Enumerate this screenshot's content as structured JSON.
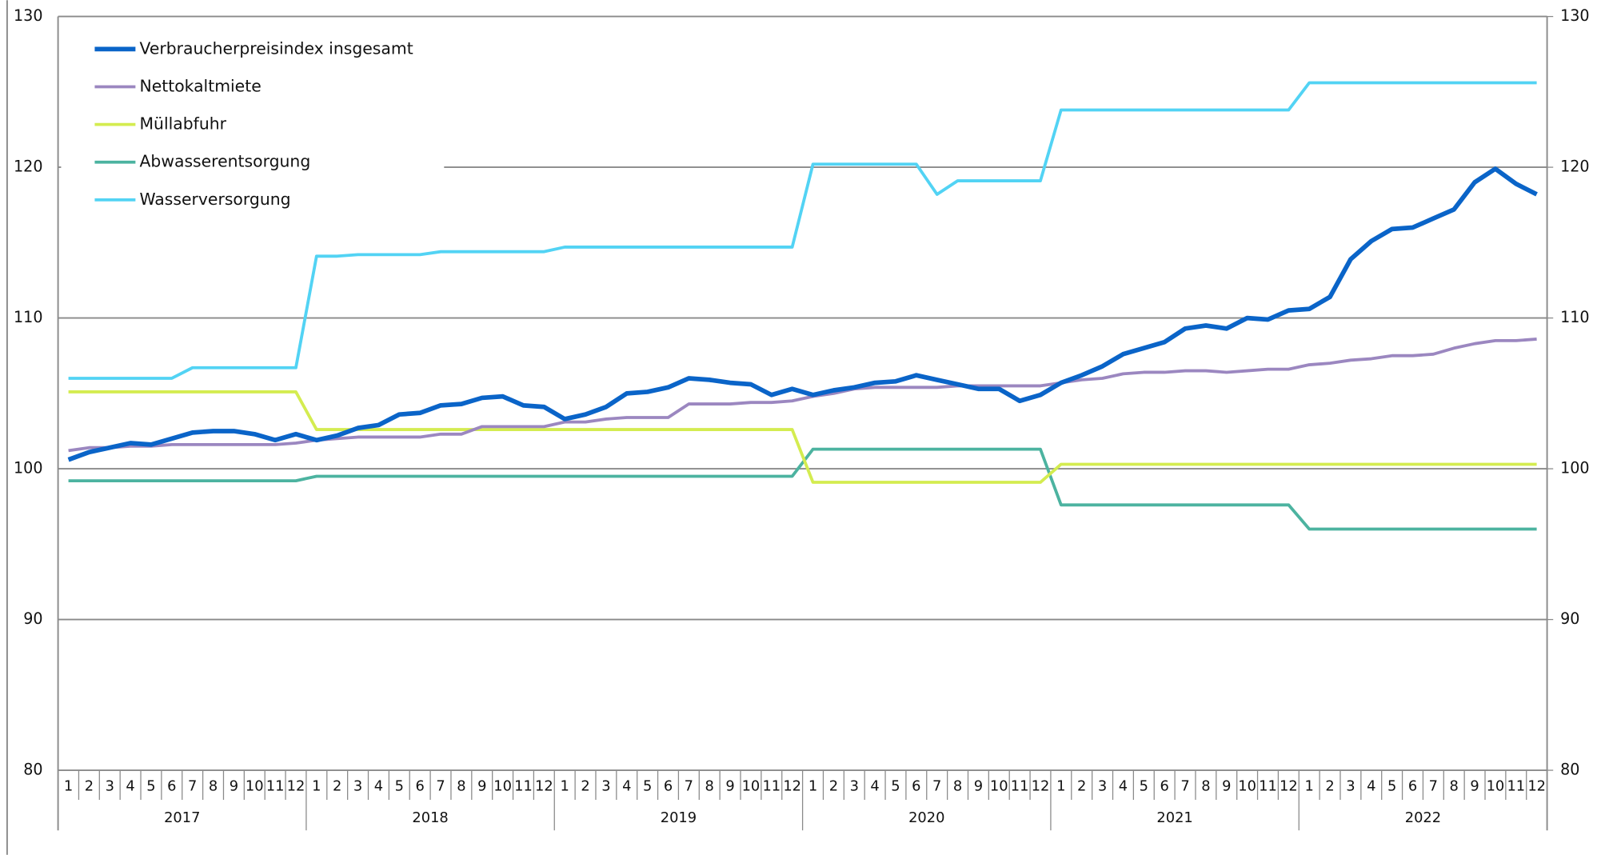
{
  "chart_data": {
    "type": "line",
    "categories": [
      "1",
      "2",
      "3",
      "4",
      "5",
      "6",
      "7",
      "8",
      "9",
      "10",
      "11",
      "12",
      "1",
      "2",
      "3",
      "4",
      "5",
      "6",
      "7",
      "8",
      "9",
      "10",
      "11",
      "12",
      "1",
      "2",
      "3",
      "4",
      "5",
      "6",
      "7",
      "8",
      "9",
      "10",
      "11",
      "12",
      "1",
      "2",
      "3",
      "4",
      "5",
      "6",
      "7",
      "8",
      "9",
      "10",
      "11",
      "12",
      "1",
      "2",
      "3",
      "4",
      "5",
      "6",
      "7",
      "8",
      "9",
      "10",
      "11",
      "12",
      "1",
      "2",
      "3",
      "4",
      "5",
      "6",
      "7",
      "8",
      "9",
      "10",
      "11",
      "12"
    ],
    "years": [
      "2017",
      "2018",
      "2019",
      "2020",
      "2021",
      "2022"
    ],
    "ylim": [
      80,
      130
    ],
    "yticks": [
      80,
      90,
      100,
      110,
      120,
      130
    ],
    "y2lim": [
      80,
      130
    ],
    "y2ticks": [
      80,
      90,
      100,
      110,
      120,
      130
    ],
    "grid": true,
    "legend": "upper left",
    "series": [
      {
        "name": "Verbraucherpreisindex insgesamt",
        "color": "#0a64c8",
        "values": [
          100.6,
          101.1,
          101.4,
          101.7,
          101.6,
          102.0,
          102.4,
          102.5,
          102.5,
          102.3,
          101.9,
          102.3,
          101.9,
          102.2,
          102.7,
          102.9,
          103.6,
          103.7,
          104.2,
          104.3,
          104.7,
          104.8,
          104.2,
          104.1,
          103.3,
          103.6,
          104.1,
          105.0,
          105.1,
          105.4,
          106.0,
          105.9,
          105.7,
          105.6,
          104.9,
          105.3,
          104.9,
          105.2,
          105.4,
          105.7,
          105.8,
          106.2,
          105.9,
          105.6,
          105.3,
          105.3,
          104.5,
          104.9,
          105.7,
          106.2,
          106.8,
          107.6,
          108.0,
          108.4,
          109.3,
          109.5,
          109.3,
          110.0,
          109.9,
          110.5,
          110.6,
          111.4,
          113.9,
          115.1,
          115.9,
          116.0,
          116.6,
          117.2,
          119.0,
          119.9,
          118.9,
          118.2
        ]
      },
      {
        "name": "Nettokaltmiete",
        "color": "#9b87c0",
        "values": [
          101.2,
          101.4,
          101.4,
          101.5,
          101.5,
          101.6,
          101.6,
          101.6,
          101.6,
          101.6,
          101.6,
          101.7,
          101.9,
          102.0,
          102.1,
          102.1,
          102.1,
          102.1,
          102.3,
          102.3,
          102.8,
          102.8,
          102.8,
          102.8,
          103.1,
          103.1,
          103.3,
          103.4,
          103.4,
          103.4,
          104.3,
          104.3,
          104.3,
          104.4,
          104.4,
          104.5,
          104.8,
          105.0,
          105.3,
          105.4,
          105.4,
          105.4,
          105.4,
          105.5,
          105.5,
          105.5,
          105.5,
          105.5,
          105.7,
          105.9,
          106.0,
          106.3,
          106.4,
          106.4,
          106.5,
          106.5,
          106.4,
          106.5,
          106.6,
          106.6,
          106.9,
          107.0,
          107.2,
          107.3,
          107.5,
          107.5,
          107.6,
          108.0,
          108.3,
          108.5,
          108.5,
          108.6
        ]
      },
      {
        "name": "Müllabfuhr",
        "color": "#d4ec50",
        "values": [
          105.1,
          105.1,
          105.1,
          105.1,
          105.1,
          105.1,
          105.1,
          105.1,
          105.1,
          105.1,
          105.1,
          105.1,
          102.6,
          102.6,
          102.6,
          102.6,
          102.6,
          102.6,
          102.6,
          102.6,
          102.6,
          102.6,
          102.6,
          102.6,
          102.6,
          102.6,
          102.6,
          102.6,
          102.6,
          102.6,
          102.6,
          102.6,
          102.6,
          102.6,
          102.6,
          102.6,
          99.1,
          99.1,
          99.1,
          99.1,
          99.1,
          99.1,
          99.1,
          99.1,
          99.1,
          99.1,
          99.1,
          99.1,
          100.3,
          100.3,
          100.3,
          100.3,
          100.3,
          100.3,
          100.3,
          100.3,
          100.3,
          100.3,
          100.3,
          100.3,
          100.3,
          100.3,
          100.3,
          100.3,
          100.3,
          100.3,
          100.3,
          100.3,
          100.3,
          100.3,
          100.3,
          100.3
        ]
      },
      {
        "name": "Abwasserentsorgung",
        "color": "#4cb3a0",
        "values": [
          99.2,
          99.2,
          99.2,
          99.2,
          99.2,
          99.2,
          99.2,
          99.2,
          99.2,
          99.2,
          99.2,
          99.2,
          99.5,
          99.5,
          99.5,
          99.5,
          99.5,
          99.5,
          99.5,
          99.5,
          99.5,
          99.5,
          99.5,
          99.5,
          99.5,
          99.5,
          99.5,
          99.5,
          99.5,
          99.5,
          99.5,
          99.5,
          99.5,
          99.5,
          99.5,
          99.5,
          101.3,
          101.3,
          101.3,
          101.3,
          101.3,
          101.3,
          101.3,
          101.3,
          101.3,
          101.3,
          101.3,
          101.3,
          97.6,
          97.6,
          97.6,
          97.6,
          97.6,
          97.6,
          97.6,
          97.6,
          97.6,
          97.6,
          97.6,
          97.6,
          96.0,
          96.0,
          96.0,
          96.0,
          96.0,
          96.0,
          96.0,
          96.0,
          96.0,
          96.0,
          96.0,
          96.0
        ]
      },
      {
        "name": "Wasserversorgung",
        "color": "#52d3f4",
        "values": [
          106.0,
          106.0,
          106.0,
          106.0,
          106.0,
          106.0,
          106.7,
          106.7,
          106.7,
          106.7,
          106.7,
          106.7,
          114.1,
          114.1,
          114.2,
          114.2,
          114.2,
          114.2,
          114.4,
          114.4,
          114.4,
          114.4,
          114.4,
          114.4,
          114.7,
          114.7,
          114.7,
          114.7,
          114.7,
          114.7,
          114.7,
          114.7,
          114.7,
          114.7,
          114.7,
          114.7,
          120.2,
          120.2,
          120.2,
          120.2,
          120.2,
          120.2,
          118.2,
          119.1,
          119.1,
          119.1,
          119.1,
          119.1,
          123.8,
          123.8,
          123.8,
          123.8,
          123.8,
          123.8,
          123.8,
          123.8,
          123.8,
          123.8,
          123.8,
          123.8,
          125.6,
          125.6,
          125.6,
          125.6,
          125.6,
          125.6,
          125.6,
          125.6,
          125.6,
          125.6,
          125.6,
          125.6
        ]
      }
    ]
  }
}
